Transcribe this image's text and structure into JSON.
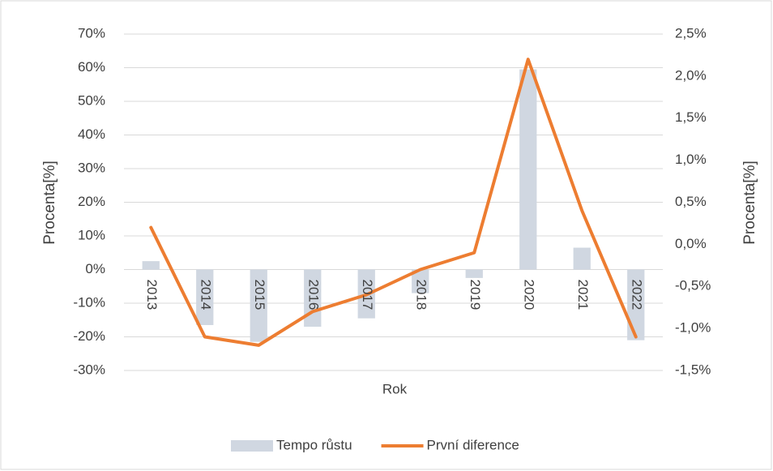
{
  "chart_data": {
    "type": "bar_line",
    "x_label": "Rok",
    "y_label": "Procenta[%]",
    "y2_label": "Procenta[%]",
    "categories": [
      "2013",
      "2014",
      "2015",
      "2016",
      "2017",
      "2018",
      "2019",
      "2020",
      "2021",
      "2022"
    ],
    "series": [
      {
        "name": "Tempo růstu",
        "type": "bar",
        "color": "#d0d7e1",
        "values": [
          2.5,
          -16.5,
          -21.5,
          -17,
          -14.5,
          -7,
          -2.5,
          59.5,
          6.5,
          -21
        ]
      },
      {
        "name": "První diference",
        "type": "line",
        "axis": "y2",
        "color": "#ed7d31",
        "values": [
          0.2,
          -1.1,
          -1.2,
          -0.8,
          -0.6,
          -0.3,
          -0.1,
          2.2,
          0.4,
          -1.1
        ]
      }
    ],
    "ylim": [
      -30,
      70
    ],
    "yticks": [
      {
        "value": -30,
        "label": "-30%"
      },
      {
        "value": -20,
        "label": "-20%"
      },
      {
        "value": -10,
        "label": "-10%"
      },
      {
        "value": 0,
        "label": "0%"
      },
      {
        "value": 10,
        "label": "10%"
      },
      {
        "value": 20,
        "label": "20%"
      },
      {
        "value": 30,
        "label": "30%"
      },
      {
        "value": 40,
        "label": "40%"
      },
      {
        "value": 50,
        "label": "50%"
      },
      {
        "value": 60,
        "label": "60%"
      },
      {
        "value": 70,
        "label": "70%"
      }
    ],
    "y2lim": [
      -1.5,
      2.5
    ],
    "y2ticks": [
      {
        "value": -1.5,
        "label": "-1,5%"
      },
      {
        "value": -1,
        "label": "-1,0%"
      },
      {
        "value": -0.5,
        "label": "-0,5%"
      },
      {
        "value": 0,
        "label": "0,0%"
      },
      {
        "value": 0.5,
        "label": "0,5%"
      },
      {
        "value": 1,
        "label": "1,0%"
      },
      {
        "value": 1.5,
        "label": "1,5%"
      },
      {
        "value": 2,
        "label": "2,0%"
      },
      {
        "value": 2.5,
        "label": "2,5%"
      }
    ],
    "grid": true,
    "legend": "bottom"
  }
}
